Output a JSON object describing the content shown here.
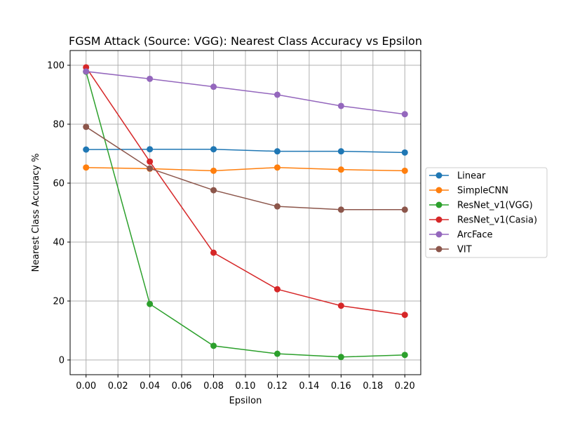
{
  "chart_data": {
    "type": "line",
    "title": "FGSM Attack (Source: VGG): Nearest Class Accuracy vs Epsilon",
    "xlabel": "Epsilon",
    "ylabel": "Nearest Class Accuracy %",
    "x": [
      0.0,
      0.04,
      0.08,
      0.12,
      0.16,
      0.2
    ],
    "x_ticks": [
      0.0,
      0.02,
      0.04,
      0.06,
      0.08,
      0.1,
      0.12,
      0.14,
      0.16,
      0.18,
      0.2
    ],
    "x_tick_labels": [
      "0.00",
      "0.02",
      "0.04",
      "0.06",
      "0.08",
      "0.10",
      "0.12",
      "0.14",
      "0.16",
      "0.18",
      "0.20"
    ],
    "y_ticks": [
      0,
      20,
      40,
      60,
      80,
      100
    ],
    "y_tick_labels": [
      "0",
      "20",
      "40",
      "60",
      "80",
      "100"
    ],
    "xlim": [
      -0.01,
      0.21
    ],
    "ylim": [
      -5,
      105
    ],
    "grid": true,
    "legend_position": "right",
    "series": [
      {
        "name": "Linear",
        "color": "#1f77b4",
        "values": [
          71.4,
          71.5,
          71.5,
          70.8,
          70.8,
          70.4
        ]
      },
      {
        "name": "SimpleCNN",
        "color": "#ff7f0e",
        "values": [
          65.3,
          64.9,
          64.2,
          65.3,
          64.6,
          64.2
        ]
      },
      {
        "name": "ResNet_v1(VGG)",
        "color": "#2ca02c",
        "values": [
          97.8,
          19.0,
          4.8,
          2.1,
          1.0,
          1.7
        ]
      },
      {
        "name": "ResNet_v1(Casia)",
        "color": "#d62728",
        "values": [
          99.3,
          67.3,
          36.4,
          24.0,
          18.4,
          15.3
        ]
      },
      {
        "name": "ArcFace",
        "color": "#9467bd",
        "values": [
          97.9,
          95.4,
          92.7,
          90.0,
          86.2,
          83.4
        ]
      },
      {
        "name": "VIT",
        "color": "#8c564b",
        "values": [
          79.1,
          65.0,
          57.6,
          52.1,
          51.0,
          51.0
        ]
      }
    ]
  }
}
